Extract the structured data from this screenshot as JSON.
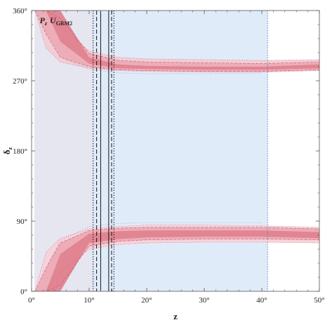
{
  "chart_data": {
    "type": "area",
    "title": "",
    "xlabel": "z",
    "ylabel": "δ_z",
    "xlim": [
      0,
      50
    ],
    "ylim": [
      0,
      360
    ],
    "x_ticks": [
      0,
      10,
      20,
      30,
      40,
      50
    ],
    "x_tick_labels": [
      "0°",
      "10°",
      "20°",
      "30°",
      "40°",
      "50°"
    ],
    "y_ticks": [
      0,
      90,
      180,
      270,
      360
    ],
    "y_tick_labels": [
      "0°",
      "90°",
      "180°",
      "270°",
      "360°"
    ],
    "annotation": {
      "main": "P_z U",
      "subscript": "GRM2"
    },
    "colors": {
      "band_inner": "#e0838f",
      "band_mid": "#ecabb6",
      "band_outer": "#f5d2d8",
      "band_outer_top": "#f1ccd2",
      "region_3sigma": "#dbe8f8",
      "region_left": "#e6e5f0",
      "line": "#000000",
      "dotted_blue": "#4a78c4"
    },
    "regions": [
      {
        "kind": "3sigma-range",
        "x": [
          0.5,
          41
        ]
      },
      {
        "kind": "left-fill",
        "x": [
          0.5,
          10.6
        ]
      }
    ],
    "vertical_lines": [
      {
        "x": 12.0,
        "style": "solid"
      },
      {
        "x": 13.4,
        "style": "solid"
      },
      {
        "x": 11.3,
        "style": "dashed"
      },
      {
        "x": 13.9,
        "style": "dashed"
      },
      {
        "x": 10.7,
        "style": "dotted"
      },
      {
        "x": 14.3,
        "style": "dotted"
      },
      {
        "x": 41.0,
        "style": "dotted-blue"
      }
    ],
    "series": [
      {
        "band": "upper",
        "x": [
          0.6,
          2.5,
          5,
          10,
          15,
          20,
          30,
          40,
          50
        ],
        "outer_lo": [
          360,
          312,
          294,
          286,
          283,
          282,
          281,
          281,
          283
        ],
        "outer_hi": [
          360,
          360,
          340,
          308,
          300,
          298,
          297,
          296,
          297
        ],
        "mid_lo": [
          360,
          330,
          300,
          288,
          284,
          283,
          282,
          282,
          284
        ],
        "mid_hi": [
          360,
          360,
          350,
          305,
          296,
          294,
          293,
          292,
          294
        ],
        "inner_lo": [
          360,
          360,
          320,
          292,
          286,
          285,
          284,
          284,
          286
        ],
        "inner_hi": [
          360,
          360,
          360,
          300,
          291,
          289,
          288,
          288,
          291
        ]
      },
      {
        "band": "lower",
        "x": [
          0.6,
          2.5,
          5,
          10,
          15,
          20,
          30,
          40,
          50
        ],
        "outer_lo": [
          0,
          0,
          24,
          54,
          60,
          62,
          63,
          63,
          62
        ],
        "outer_hi": [
          0,
          50,
          68,
          80,
          83,
          85,
          85,
          84,
          82
        ],
        "mid_lo": [
          0,
          0,
          8,
          58,
          64,
          66,
          67,
          67,
          66
        ],
        "mid_hi": [
          0,
          30,
          62,
          78,
          81,
          82,
          82,
          82,
          80
        ],
        "inner_lo": [
          0,
          0,
          0,
          62,
          67,
          69,
          70,
          70,
          68
        ],
        "inner_hi": [
          0,
          0,
          48,
          74,
          77,
          78,
          78,
          78,
          76
        ]
      },
      {
        "band": "envelope",
        "x": [
          0.6,
          2.5,
          5,
          10,
          15,
          20,
          30,
          40
        ],
        "lo": [
          0,
          30,
          65,
          83,
          87,
          88,
          88,
          88
        ],
        "hi": [
          360,
          330,
          300,
          285,
          280,
          279,
          279,
          280
        ]
      }
    ],
    "grid": false,
    "legend": "none"
  }
}
